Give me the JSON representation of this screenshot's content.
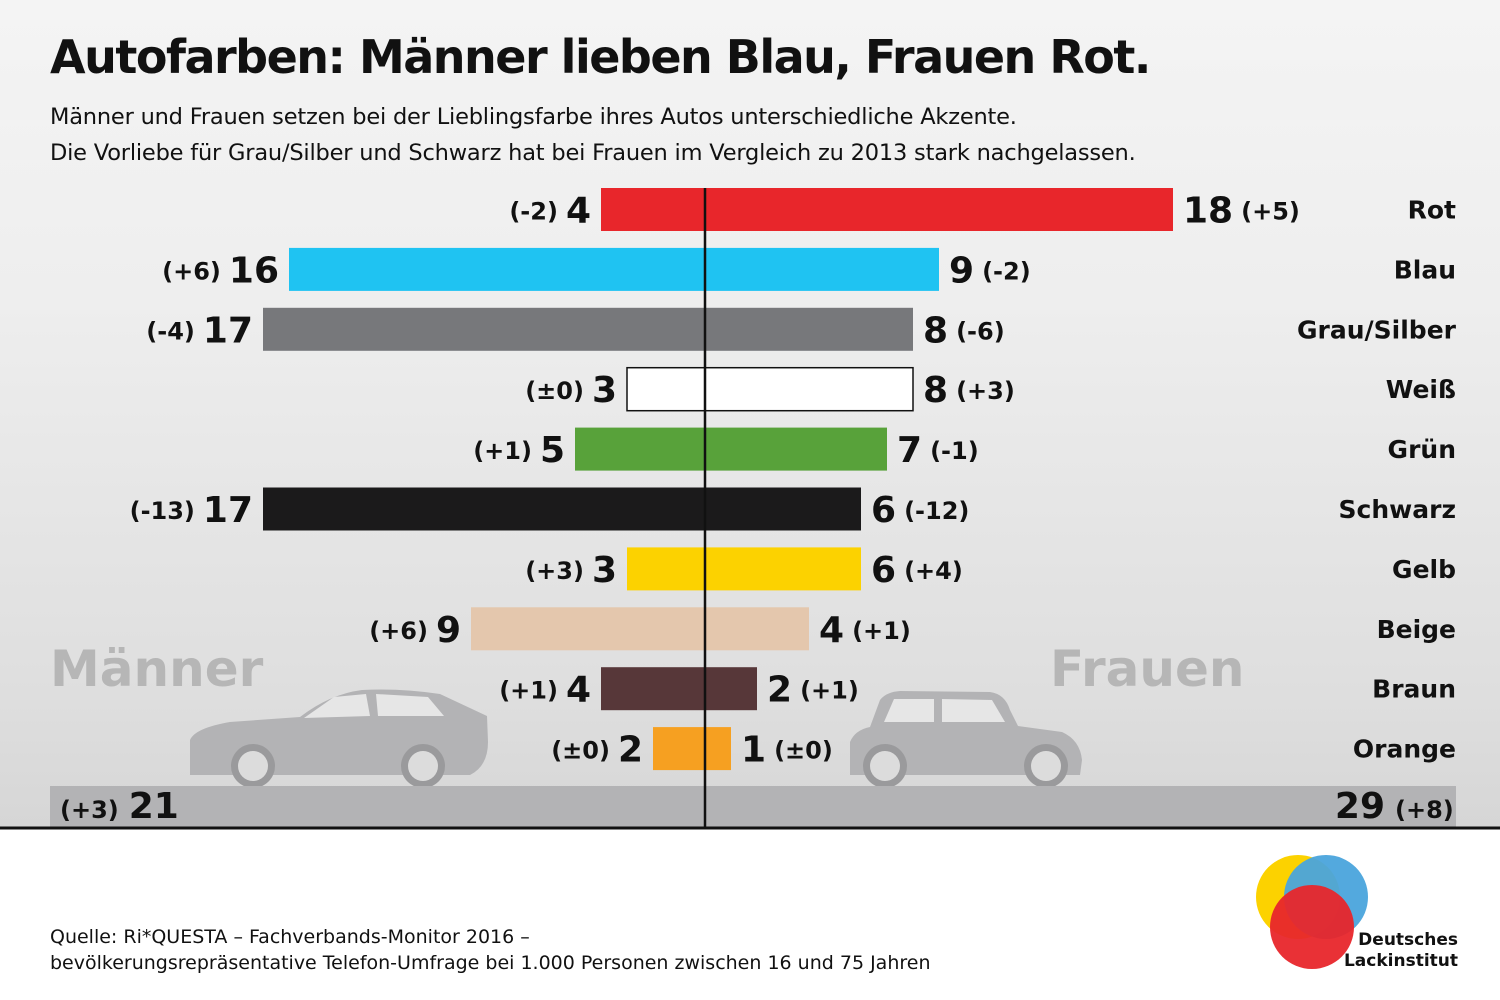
{
  "title": "Autofarben: Männer lieben Blau, Frauen Rot.",
  "subtitle_lines": [
    "Männer und Frauen setzen bei der Lieblingsfarbe ihres Autos unterschiedliche Akzente.",
    "Die Vorliebe für Grau/Silber und Schwarz hat bei Frauen im Vergleich zu 2013 stark nachgelassen."
  ],
  "chart_data": {
    "type": "bar",
    "orientation": "horizontal-diverging",
    "series": [
      {
        "name": "Männer",
        "direction": "left",
        "values": [
          4,
          16,
          17,
          3,
          5,
          17,
          3,
          9,
          4,
          2
        ],
        "changes": [
          "(-2)",
          "(+6)",
          "(-4)",
          "(±0)",
          "(+1)",
          "(-13)",
          "(+3)",
          "(+6)",
          "(+1)",
          "(±0)"
        ]
      },
      {
        "name": "Frauen",
        "direction": "right",
        "values": [
          18,
          9,
          8,
          8,
          7,
          6,
          6,
          4,
          2,
          1
        ],
        "changes": [
          "(+5)",
          "(-2)",
          "(-6)",
          "(+3)",
          "(-1)",
          "(-12)",
          "(+4)",
          "(+1)",
          "(+1)",
          "(±0)"
        ]
      }
    ],
    "categories": [
      "Rot",
      "Blau",
      "Grau/Silber",
      "Weiß",
      "Grün",
      "Schwarz",
      "Gelb",
      "Beige",
      "Braun",
      "Orange"
    ],
    "colors": [
      "#e8262b",
      "#1fc3f2",
      "#77787b",
      "#ffffff",
      "#58a23a",
      "#1b1a1b",
      "#fcd200",
      "#e4c7ad",
      "#573739",
      "#f6a021"
    ],
    "other": {
      "colors": [
        "#b3b3b5"
      ],
      "maenner": {
        "value": 21,
        "change": "(+3)"
      },
      "frauen": {
        "value": 29,
        "change": "(+8)"
      }
    }
  },
  "source_lines": [
    "Quelle: Ri*QUESTA – Fachverbands-Monitor 2016 –",
    "bevölkerungsrepräsentative Telefon-Umfrage bei 1.000 Personen zwischen 16 und 75 Jahren"
  ],
  "logo": {
    "name_lines": [
      "Deutsches",
      "Lackinstitut"
    ],
    "colors": [
      "#fcd200",
      "#58a23a",
      "#4aa4dc",
      "#e8262b",
      "#f26f21",
      "#3b4a9c"
    ]
  },
  "icons": [
    "car-coupe-icon",
    "car-hatchback-icon"
  ]
}
